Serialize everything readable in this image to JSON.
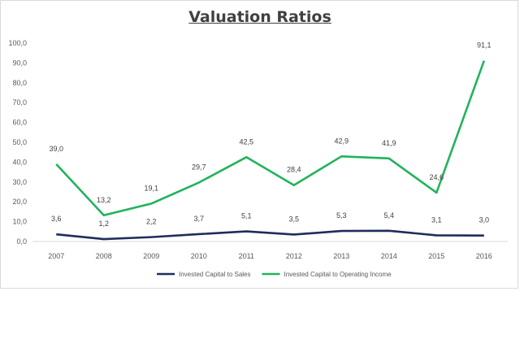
{
  "chart_data": {
    "type": "line",
    "title": "Valuation Ratios",
    "categories": [
      "2007",
      "2008",
      "2009",
      "2010",
      "2011",
      "2012",
      "2013",
      "2014",
      "2015",
      "2016"
    ],
    "ylim": [
      0,
      100
    ],
    "y_ticks": [
      "0,0",
      "10,0",
      "20,0",
      "30,0",
      "40,0",
      "50,0",
      "60,0",
      "70,0",
      "80,0",
      "90,0",
      "100,0"
    ],
    "grid": false,
    "legend_position": "bottom",
    "series": [
      {
        "name": "Invested Capital to Sales",
        "color": "#1f2d5c",
        "values": [
          3.6,
          1.2,
          2.2,
          3.7,
          5.1,
          3.5,
          5.3,
          5.4,
          3.1,
          3.0
        ],
        "labels": [
          "3,6",
          "1,2",
          "2,2",
          "3,7",
          "5,1",
          "3,5",
          "5,3",
          "5,4",
          "3,1",
          "3,0"
        ]
      },
      {
        "name": "Invested Capital to Operating Income",
        "color": "#22b35c",
        "values": [
          39.0,
          13.2,
          19.1,
          29.7,
          42.5,
          28.4,
          42.9,
          41.9,
          24.6,
          91.1
        ],
        "labels": [
          "39,0",
          "13,2",
          "19,1",
          "29,7",
          "42,5",
          "28,4",
          "42,9",
          "41,9",
          "24,6",
          "91,1"
        ]
      }
    ]
  }
}
